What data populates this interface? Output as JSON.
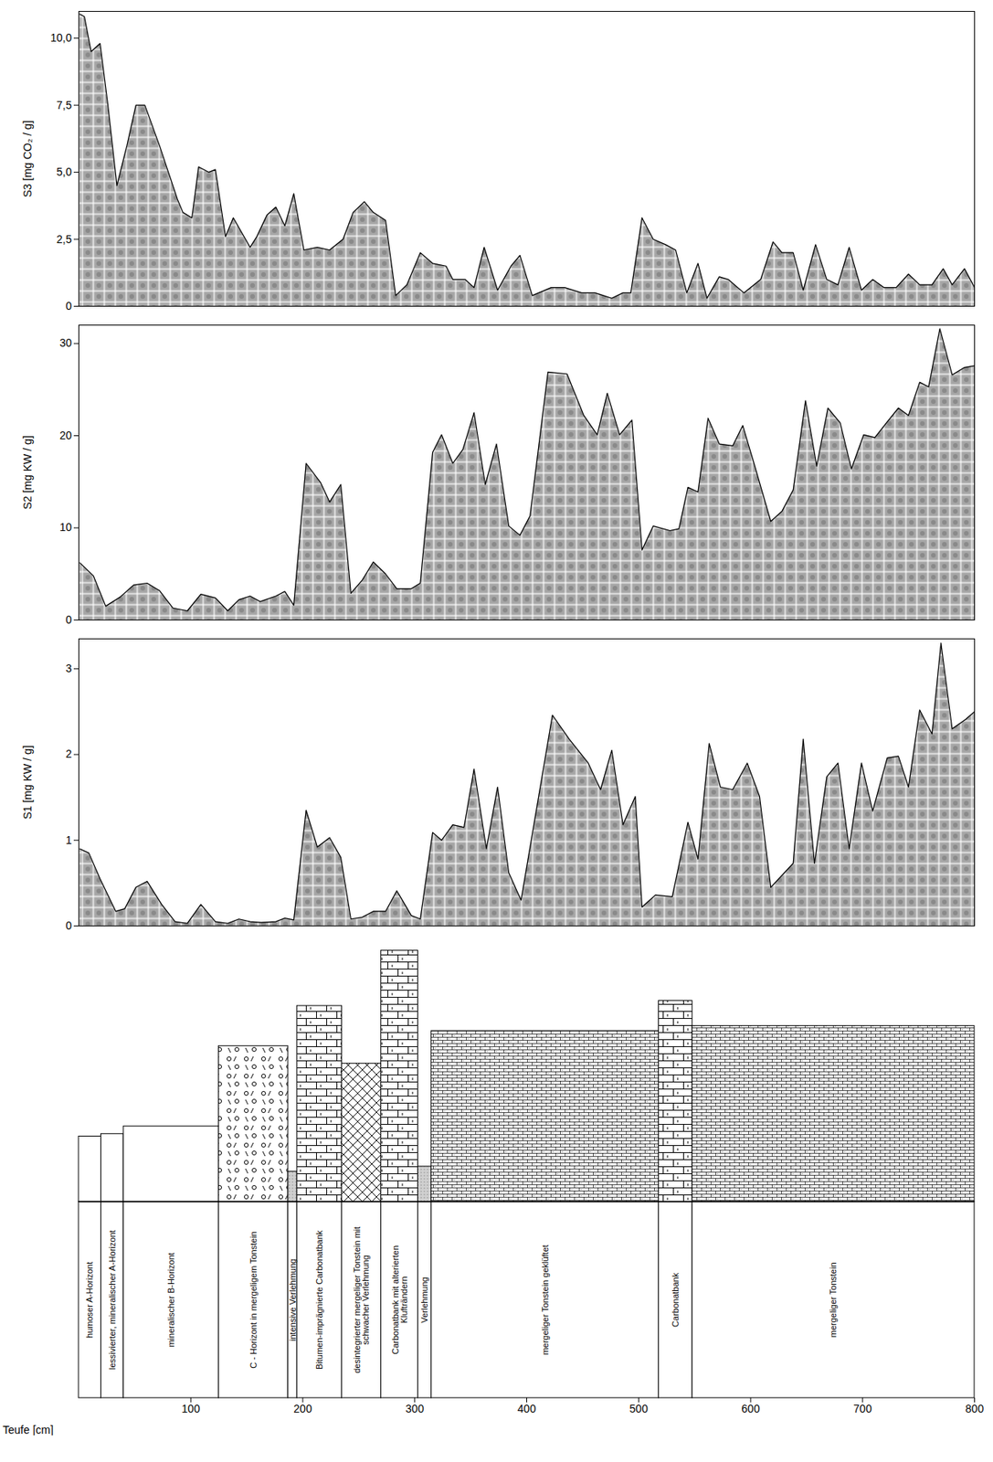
{
  "chart_data": [
    {
      "type": "area",
      "ylabel": "S3 [mg CO₂ / g]",
      "x": [
        1,
        5,
        11,
        19,
        26,
        34,
        43,
        51,
        59,
        72,
        88,
        93,
        101,
        107,
        116,
        122,
        131,
        138,
        153,
        159,
        168,
        176,
        184,
        192,
        201,
        213,
        224,
        236,
        245,
        255,
        263,
        274,
        283,
        293,
        305,
        316,
        328,
        334,
        345,
        353,
        362,
        374,
        386,
        394,
        405,
        422,
        434,
        449,
        461,
        476,
        486,
        493,
        503,
        513,
        524,
        533,
        543,
        553,
        561,
        572,
        580,
        594,
        609,
        620,
        628,
        638,
        647,
        658,
        668,
        678,
        688,
        699,
        709,
        719,
        730,
        741,
        751,
        762,
        772,
        780,
        791,
        800
      ],
      "values": [
        10.9,
        10.8,
        9.5,
        9.8,
        7.5,
        4.5,
        6.0,
        7.5,
        7.5,
        6.0,
        4.0,
        3.5,
        3.3,
        5.2,
        5.0,
        5.1,
        2.6,
        3.3,
        2.2,
        2.6,
        3.4,
        3.7,
        3.0,
        4.2,
        2.1,
        2.2,
        2.1,
        2.5,
        3.5,
        3.9,
        3.5,
        3.2,
        0.4,
        0.8,
        2.0,
        1.6,
        1.5,
        1.0,
        1.0,
        0.7,
        2.2,
        0.6,
        1.5,
        1.9,
        0.4,
        0.7,
        0.7,
        0.5,
        0.5,
        0.3,
        0.5,
        0.5,
        3.3,
        2.5,
        2.3,
        2.1,
        0.5,
        1.6,
        0.3,
        1.1,
        1.0,
        0.5,
        1.0,
        2.4,
        2.0,
        2.0,
        0.6,
        2.3,
        1.0,
        0.8,
        2.2,
        0.6,
        1.0,
        0.7,
        0.7,
        1.2,
        0.8,
        0.8,
        1.4,
        0.8,
        1.4,
        0.7
      ],
      "xlim": [
        0,
        800
      ],
      "ylim": [
        0,
        11
      ],
      "yticks": [
        0,
        {
          "value": 2.5,
          "label": "2,5"
        },
        {
          "value": 5,
          "label": "5,0"
        },
        {
          "value": 7.5,
          "label": "7,5"
        },
        {
          "value": 10,
          "label": "10,0"
        }
      ],
      "tick_labels": "y",
      "color": "#a6a6a6"
    },
    {
      "type": "area",
      "ylabel": "S2 [mg KW / g]",
      "x": [
        1,
        13,
        24,
        37,
        49,
        61,
        72,
        84,
        97,
        109,
        122,
        133,
        143,
        153,
        162,
        176,
        184,
        192,
        203,
        216,
        224,
        234,
        243,
        253,
        263,
        274,
        284,
        297,
        305,
        316,
        324,
        334,
        343,
        353,
        363,
        373,
        384,
        394,
        403,
        419,
        436,
        451,
        463,
        472,
        483,
        494,
        503,
        513,
        528,
        536,
        544,
        553,
        562,
        572,
        584,
        593,
        603,
        618,
        628,
        638,
        649,
        659,
        669,
        680,
        690,
        701,
        711,
        722,
        732,
        741,
        751,
        759,
        769,
        780,
        791,
        800
      ],
      "values": [
        6.2,
        4.8,
        1.5,
        2.5,
        3.8,
        4.0,
        3.2,
        1.3,
        1.0,
        2.8,
        2.4,
        1.0,
        2.2,
        2.6,
        2.0,
        2.6,
        3.1,
        1.6,
        17.0,
        14.9,
        12.8,
        14.7,
        2.9,
        4.3,
        6.3,
        5.0,
        3.4,
        3.4,
        4.0,
        18.2,
        20.1,
        17.0,
        18.5,
        22.5,
        14.7,
        19.1,
        10.2,
        9.2,
        11.3,
        26.9,
        26.7,
        22.2,
        20.1,
        24.6,
        20.1,
        21.7,
        7.6,
        10.2,
        9.7,
        9.9,
        14.4,
        13.9,
        21.9,
        19.1,
        18.9,
        21.1,
        17.0,
        10.7,
        11.8,
        14.1,
        23.8,
        16.7,
        23.0,
        21.4,
        16.4,
        20.1,
        19.8,
        21.5,
        23.0,
        22.2,
        25.8,
        25.3,
        31.6,
        26.6,
        27.4,
        27.6
      ],
      "xlim": [
        0,
        800
      ],
      "ylim": [
        0,
        32
      ],
      "yticks": [
        0,
        10,
        20,
        30
      ],
      "tick_labels": "y",
      "color": "#a6a6a6"
    },
    {
      "type": "area",
      "ylabel": "S1 [mg KW / g]",
      "x": [
        1,
        9,
        19,
        33,
        41,
        51,
        61,
        74,
        86,
        97,
        109,
        122,
        133,
        143,
        153,
        163,
        176,
        184,
        192,
        203,
        213,
        224,
        234,
        243,
        253,
        263,
        274,
        284,
        297,
        305,
        316,
        324,
        334,
        344,
        353,
        364,
        374,
        384,
        395,
        423,
        438,
        455,
        466,
        476,
        486,
        497,
        503,
        515,
        530,
        544,
        553,
        563,
        573,
        584,
        597,
        608,
        618,
        638,
        647,
        657,
        668,
        678,
        688,
        699,
        709,
        722,
        732,
        741,
        751,
        762,
        770,
        780,
        792,
        800
      ],
      "values": [
        0.9,
        0.85,
        0.55,
        0.17,
        0.2,
        0.45,
        0.52,
        0.25,
        0.05,
        0.03,
        0.25,
        0.05,
        0.03,
        0.08,
        0.05,
        0.04,
        0.05,
        0.09,
        0.07,
        1.35,
        0.92,
        1.03,
        0.8,
        0.08,
        0.1,
        0.17,
        0.17,
        0.41,
        0.12,
        0.08,
        1.09,
        1.0,
        1.18,
        1.15,
        1.83,
        0.9,
        1.62,
        0.62,
        0.3,
        2.46,
        2.18,
        1.9,
        1.59,
        2.05,
        1.18,
        1.51,
        0.22,
        0.36,
        0.34,
        1.21,
        0.78,
        2.13,
        1.62,
        1.59,
        1.9,
        1.51,
        0.45,
        0.73,
        2.18,
        0.73,
        1.74,
        1.9,
        0.9,
        1.9,
        1.34,
        1.96,
        1.98,
        1.62,
        2.52,
        2.24,
        3.3,
        2.3,
        2.41,
        2.5
      ],
      "xlim": [
        0,
        800
      ],
      "ylim": [
        0,
        3.35
      ],
      "yticks": [
        0,
        1,
        2,
        3
      ],
      "tick_labels": "y",
      "color": "#a6a6a6"
    },
    {
      "type": "profile",
      "xlabel": "Teufe [cm]",
      "xlim": [
        0,
        800
      ],
      "xticks": [
        100,
        200,
        300,
        400,
        500,
        600,
        700,
        800
      ],
      "tick_labels": "x",
      "intervals": [
        {
          "from": 0,
          "to": 20,
          "label": "humoser A-Horizont"
        },
        {
          "from": 20,
          "to": 40,
          "label": "lessivierter, mineralischer A-Horizont"
        },
        {
          "from": 40,
          "to": 125,
          "label": "mineralischer B-Horizont"
        },
        {
          "from": 125,
          "to": 187,
          "label": "C - Horizont in mergeligem Tonstein"
        },
        {
          "from": 187,
          "to": 195,
          "label": "intensive Verlehmung"
        },
        {
          "from": 195,
          "to": 235,
          "label": "Bitumen-imprägnierte Carbonatbank"
        },
        {
          "from": 235,
          "to": 270,
          "label": "desintegrierter mergeliger Tonstein mit schwacher Verlehmung"
        },
        {
          "from": 270,
          "to": 303,
          "label": "Carbonatbank mit alterierten Klufträndern"
        },
        {
          "from": 303,
          "to": 315,
          "label": "Verlehmung"
        },
        {
          "from": 315,
          "to": 518,
          "label": "mergeliger Tonstein geklüftet"
        },
        {
          "from": 518,
          "to": 548,
          "label": "Carbonatbank"
        },
        {
          "from": 548,
          "to": 800,
          "label": "mergeliger Tonstein"
        }
      ]
    }
  ]
}
